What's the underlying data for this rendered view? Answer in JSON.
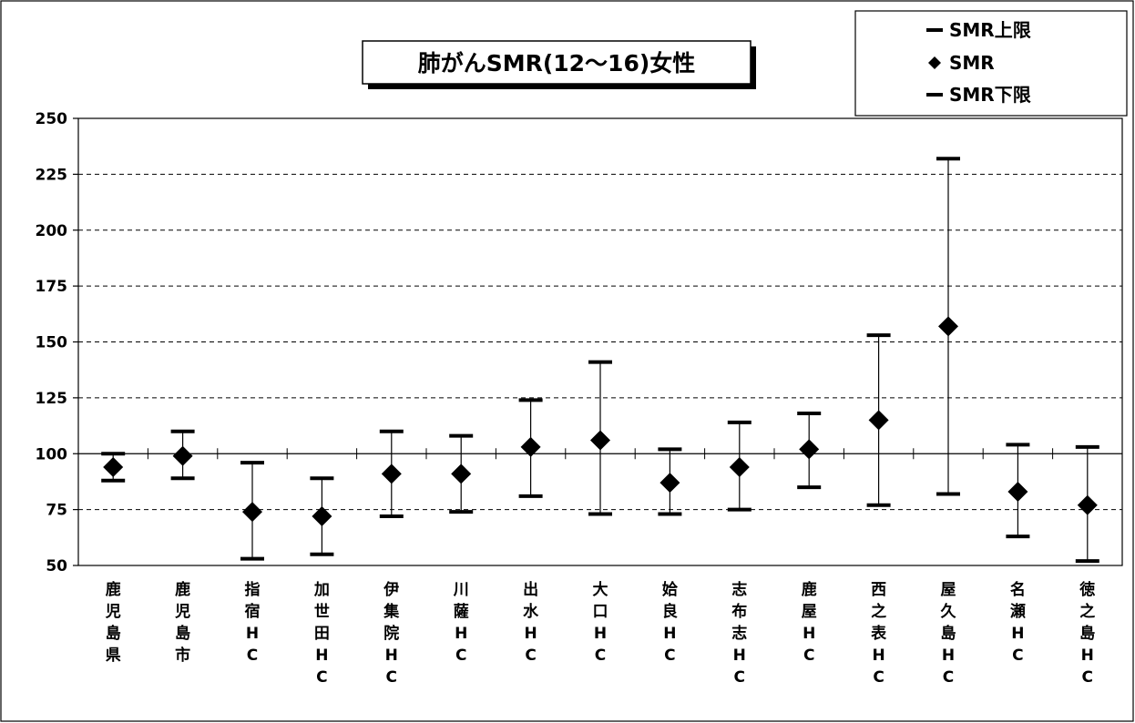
{
  "chart_data": {
    "type": "scatter",
    "title": "肺がんSMR(12～16)女性",
    "xlabel": "",
    "ylabel": "",
    "ylim": [
      50,
      250
    ],
    "yticks": [
      50,
      75,
      100,
      125,
      150,
      175,
      200,
      225,
      250
    ],
    "reference_line": 100,
    "grid": "dashed horizontal",
    "legend_position": "top-right",
    "categories": [
      "鹿児島県",
      "鹿児島市",
      "指宿HC",
      "加世田HC",
      "伊集院HC",
      "川薩HC",
      "出水HC",
      "大口HC",
      "姶良HC",
      "志布志HC",
      "鹿屋HC",
      "西之表HC",
      "屋久島HC",
      "名瀬HC",
      "徳之島HC"
    ],
    "series": [
      {
        "name": "SMR上限",
        "marker": "dash",
        "values": [
          100,
          110,
          96,
          89,
          110,
          108,
          124,
          141,
          102,
          114,
          118,
          153,
          232,
          104,
          103
        ]
      },
      {
        "name": "SMR",
        "marker": "diamond",
        "values": [
          94,
          99,
          74,
          72,
          91,
          91,
          103,
          106,
          87,
          94,
          102,
          115,
          157,
          83,
          77
        ]
      },
      {
        "name": "SMR下限",
        "marker": "dash",
        "values": [
          88,
          89,
          53,
          55,
          72,
          74,
          81,
          73,
          73,
          75,
          85,
          77,
          82,
          63,
          52
        ]
      }
    ],
    "colors": {
      "marker": "#000000",
      "grid": "#000000",
      "background": "#ffffff"
    }
  }
}
